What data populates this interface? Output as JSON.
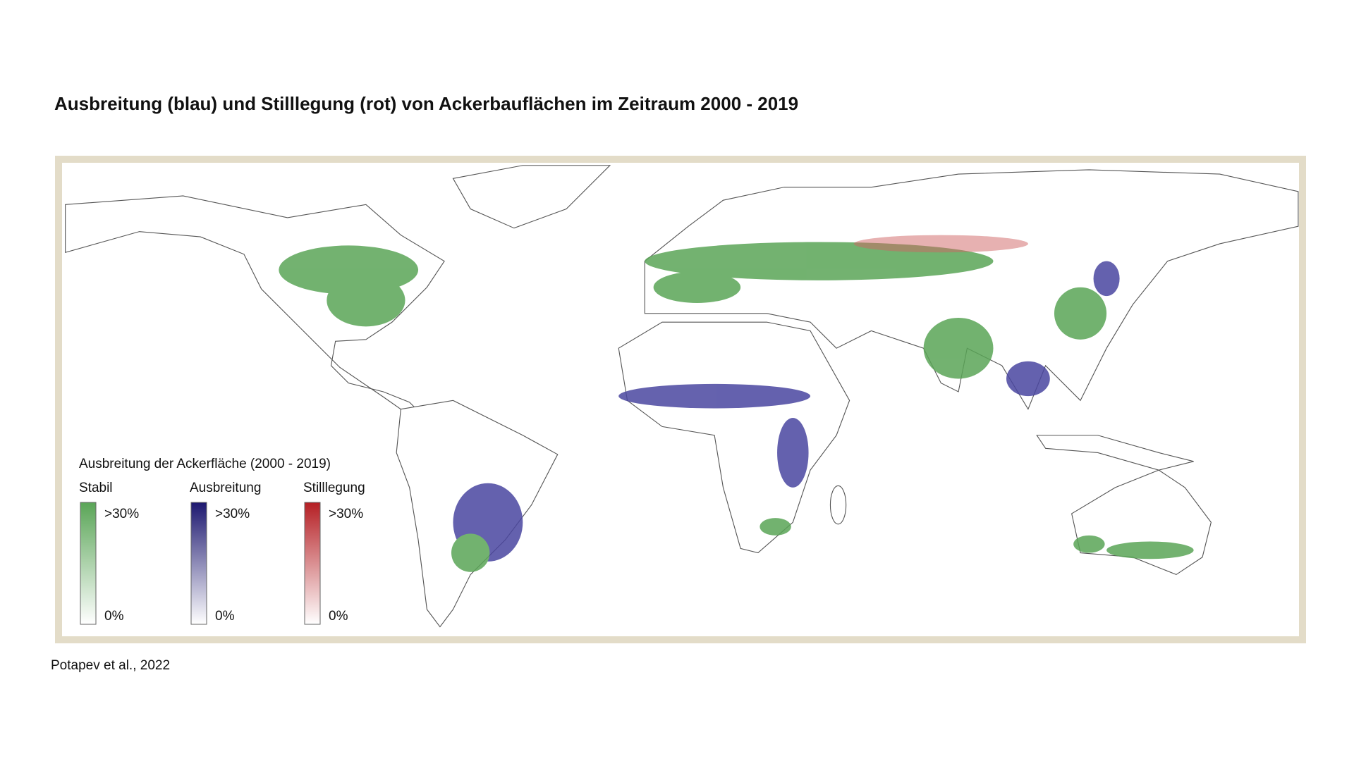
{
  "header": {
    "title": "Ausbreitung (blau) und Stilllegung (rot) von Ackerbauflächen im Zeitraum 2000 - 2019"
  },
  "map": {
    "legend": {
      "title": "Ausbreitung der Ackerfläche (2000 - 2019)",
      "items": [
        {
          "name": "Stabil",
          "max_label": ">30%",
          "min_label": "0%"
        },
        {
          "name": "Ausbreitung",
          "max_label": ">30%",
          "min_label": "0%"
        },
        {
          "name": "Stilllegung",
          "max_label": ">30%",
          "min_label": "0%"
        }
      ]
    }
  },
  "source": "Potapev et al., 2022"
}
